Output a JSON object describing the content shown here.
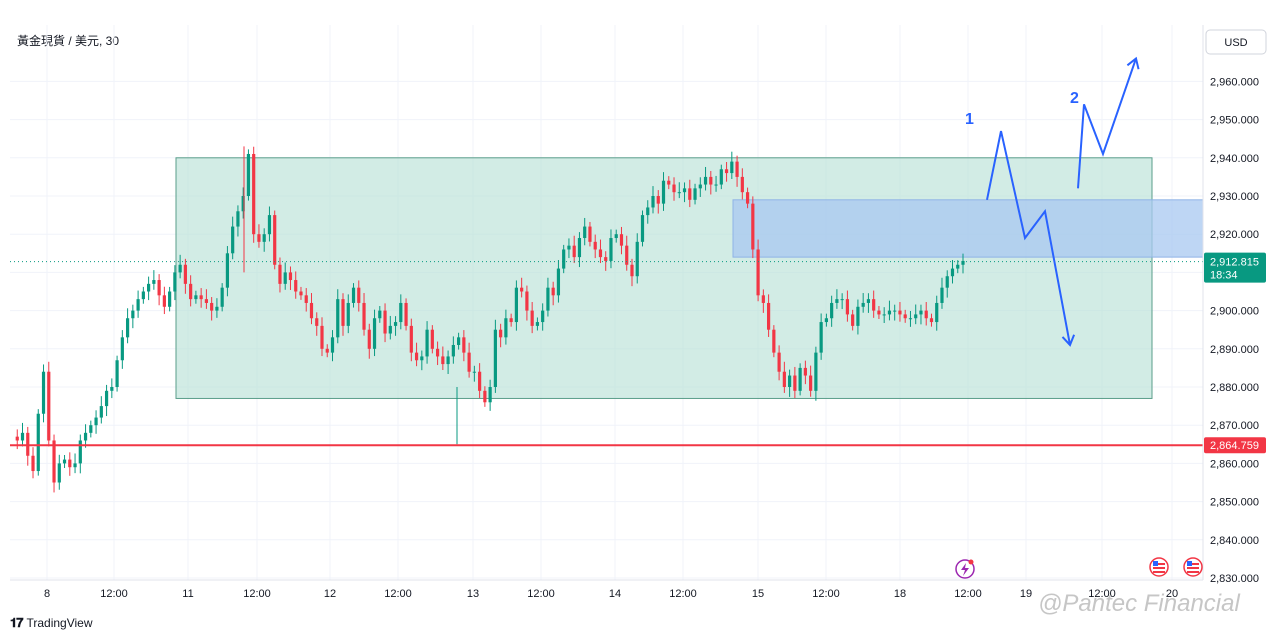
{
  "header": {
    "symbol": "黃金現貨 / 美元, 30"
  },
  "brand": {
    "logo_text": "TradingView"
  },
  "watermark": {
    "text": "@Pantec Financial"
  },
  "chart_data": {
    "type": "candlestick",
    "currency": "USD",
    "y_range": [
      2830,
      2970
    ],
    "y_ticks": [
      2830,
      2840,
      2850,
      2860,
      2870,
      2880,
      2890,
      2900,
      2910,
      2920,
      2930,
      2940,
      2950,
      2960
    ],
    "y_tick_labels": [
      "2,830.000",
      "2,840.000",
      "2,850.000",
      "2,860.000",
      "2,870.000",
      "2,880.000",
      "2,890.000",
      "2,900.000",
      "2,910.000",
      "2,920.000",
      "2,930.000",
      "2,940.000",
      "2,950.000",
      "2,960.000"
    ],
    "x_labels": [
      "8",
      "12:00",
      "11",
      "12:00",
      "12",
      "12:00",
      "13",
      "12:00",
      "14",
      "12:00",
      "15",
      "12:00",
      "18",
      "12:00",
      "19",
      "12:00",
      "20"
    ],
    "current_price": {
      "value": 2912.815,
      "label": "2,912.815",
      "countdown": "18:34",
      "color": "#089981"
    },
    "support_line": {
      "value": 2864.759,
      "label": "2,864.759",
      "color": "#f23645"
    },
    "range_box": {
      "top": 2940,
      "bottom": 2877,
      "color": "#b7e1d5"
    },
    "resistance_zone": {
      "top": 2929,
      "bottom": 2914,
      "color": "#a8c8f0"
    },
    "scenario_labels": [
      "1",
      "2"
    ],
    "scenario_1_path": [
      2929,
      2947,
      2919,
      2926,
      2891
    ],
    "scenario_2_path": [
      2932,
      2954,
      2941,
      2966
    ],
    "price_path": [
      2867,
      2866,
      2868,
      2862,
      2858,
      2873,
      2884,
      2866,
      2855,
      2860,
      2861,
      2859,
      2860,
      2866,
      2868,
      2870,
      2872,
      2875,
      2879,
      2880,
      2887,
      2893,
      2898,
      2900,
      2903,
      2905,
      2907,
      2908,
      2904,
      2901,
      2905,
      2910,
      2912,
      2907,
      2903,
      2904,
      2903,
      2902,
      2900,
      2901,
      2906,
      2915,
      2922,
      2926,
      2930,
      2941,
      2920,
      2918,
      2920,
      2925,
      2912,
      2907,
      2910,
      2908,
      2905,
      2904,
      2902,
      2898,
      2896,
      2890,
      2889,
      2893,
      2903,
      2896,
      2902,
      2906,
      2902,
      2895,
      2890,
      2898,
      2900,
      2894,
      2896,
      2897,
      2902,
      2896,
      2889,
      2887,
      2888,
      2895,
      2890,
      2888,
      2886,
      2888,
      2891,
      2893,
      2889,
      2884,
      2884,
      2879,
      2876,
      2880,
      2895,
      2893,
      2898,
      2897,
      2906,
      2905,
      2900,
      2896,
      2897,
      2900,
      2906,
      2904,
      2911,
      2916,
      2917,
      2914,
      2919,
      2922,
      2918,
      2916,
      2914,
      2913,
      2919,
      2920,
      2917,
      2912,
      2909,
      2918,
      2925,
      2927,
      2930,
      2928,
      2934,
      2933,
      2931,
      2931,
      2932,
      2929,
      2932,
      2933,
      2935,
      2933,
      2933,
      2937,
      2936,
      2939,
      2935,
      2931,
      2928,
      2916,
      2904,
      2902,
      2895,
      2889,
      2884,
      2880,
      2883,
      2879,
      2885,
      2883,
      2879,
      2889,
      2897,
      2898,
      2902,
      2903,
      2903,
      2899,
      2896,
      2901,
      2902,
      2903,
      2900,
      2899,
      2899,
      2900,
      2900,
      2899,
      2898,
      2898,
      2899,
      2900,
      2898,
      2897,
      2902,
      2906,
      2909,
      2911,
      2912,
      2913
    ]
  }
}
